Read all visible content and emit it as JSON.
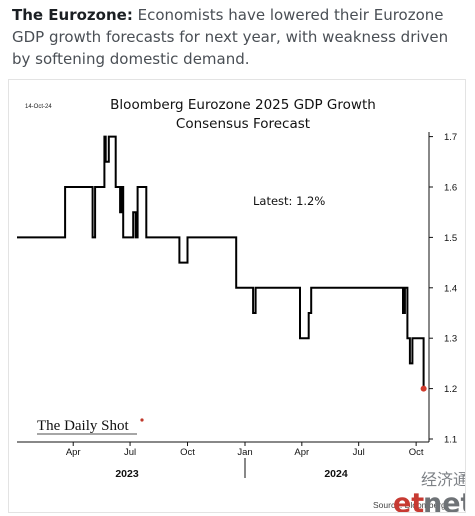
{
  "caption": {
    "lead": "The Eurozone:",
    "text": " Economists have lowered their Eurozone GDP growth forecasts for next year, with weakness driven by softening domestic demand."
  },
  "chart_data": {
    "type": "line",
    "title_line1": "Bloomberg Eurozone 2025 GDP Growth",
    "title_line2": "Consensus Forecast",
    "date_label": "14-Oct-24",
    "annotation": "Latest:  1.2%",
    "ylim": [
      1.1,
      1.75
    ],
    "y_ticks": [
      "1.1",
      "1.2",
      "1.3",
      "1.4",
      "1.5",
      "1.6",
      "1.7"
    ],
    "x_ticks": [
      "Apr",
      "Jul",
      "Oct",
      "Jan",
      "Apr",
      "Jul",
      "Oct"
    ],
    "year_labels": [
      "2023",
      "2024"
    ],
    "series": [
      {
        "color": "#000000",
        "x": [
          "2023-01-01",
          "2023-03-19",
          "2023-03-19",
          "2023-05-02",
          "2023-05-02",
          "2023-05-06",
          "2023-05-06",
          "2023-05-21",
          "2023-05-21",
          "2023-05-23",
          "2023-05-23",
          "2023-05-28",
          "2023-05-28",
          "2023-06-08",
          "2023-06-08",
          "2023-06-15",
          "2023-06-15",
          "2023-06-18",
          "2023-06-18",
          "2023-06-20",
          "2023-06-20",
          "2023-07-06",
          "2023-07-06",
          "2023-07-10",
          "2023-07-10",
          "2023-07-13",
          "2023-07-13",
          "2023-07-27",
          "2023-07-27",
          "2023-07-30",
          "2023-07-30",
          "2023-08-03",
          "2023-08-03",
          "2023-09-18",
          "2023-09-18",
          "2023-10-01",
          "2023-10-01",
          "2023-10-14",
          "2023-10-14",
          "2023-12-18",
          "2023-12-18",
          "2024-01-14",
          "2024-01-14",
          "2024-01-18",
          "2024-01-18",
          "2024-03-29",
          "2024-03-29",
          "2024-04-12",
          "2024-04-12",
          "2024-04-16",
          "2024-04-16",
          "2024-09-10",
          "2024-09-10",
          "2024-09-13",
          "2024-09-13",
          "2024-09-17",
          "2024-09-17",
          "2024-09-21",
          "2024-09-21",
          "2024-09-25",
          "2024-09-25",
          "2024-09-28",
          "2024-09-28",
          "2024-10-13",
          "2024-10-13"
        ],
        "y": [
          1.5,
          1.5,
          1.6,
          1.6,
          1.5,
          1.5,
          1.6,
          1.6,
          1.7,
          1.7,
          1.65,
          1.65,
          1.7,
          1.7,
          1.6,
          1.6,
          1.55,
          1.55,
          1.6,
          1.6,
          1.5,
          1.5,
          1.55,
          1.55,
          1.5,
          1.5,
          1.6,
          1.6,
          1.5,
          1.5,
          1.5,
          1.5,
          1.5,
          1.5,
          1.45,
          1.45,
          1.5,
          1.5,
          1.5,
          1.5,
          1.4,
          1.4,
          1.35,
          1.35,
          1.4,
          1.4,
          1.3,
          1.3,
          1.35,
          1.35,
          1.4,
          1.4,
          1.35,
          1.35,
          1.4,
          1.4,
          1.3,
          1.3,
          1.25,
          1.25,
          1.3,
          1.3,
          1.3,
          1.3,
          1.2
        ]
      }
    ],
    "latest_point": {
      "x": "2024-10-13",
      "y": 1.2,
      "color": "#d03a2c"
    },
    "grid": false
  },
  "branding": {
    "logo_text": "The Daily Shot",
    "source": "Source: Bloomberg",
    "watermark_cn": "经济通",
    "watermark_et": "et",
    "watermark_net": "net"
  }
}
